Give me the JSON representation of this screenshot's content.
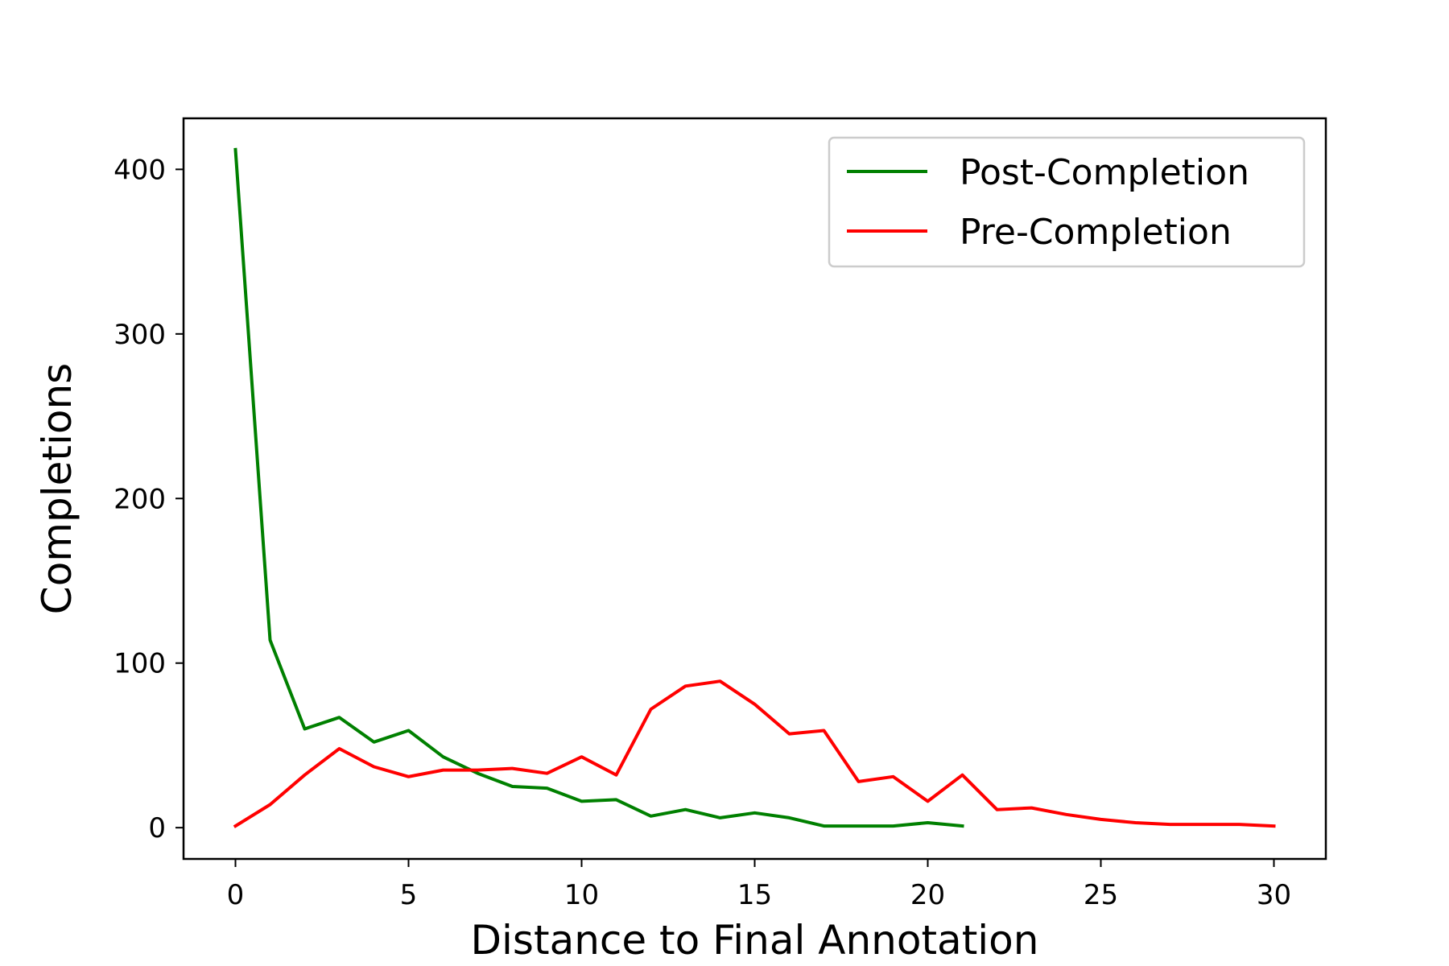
{
  "chart_data": {
    "type": "line",
    "title": "",
    "xlabel": "Distance to Final Annotation",
    "ylabel": "Completions",
    "xlim": [
      -1.5,
      31.5
    ],
    "ylim": [
      -19,
      431
    ],
    "xticks": [
      0,
      5,
      10,
      15,
      20,
      25,
      30
    ],
    "yticks": [
      0,
      100,
      200,
      300,
      400
    ],
    "grid": false,
    "legend_position": "top-right",
    "series": [
      {
        "name": "Post-Completion",
        "color": "#008000",
        "x": [
          0,
          1,
          2,
          3,
          4,
          5,
          6,
          7,
          8,
          9,
          10,
          11,
          12,
          13,
          14,
          15,
          16,
          17,
          18,
          19,
          20,
          21
        ],
        "values": [
          412,
          114,
          60,
          67,
          52,
          59,
          43,
          33,
          25,
          24,
          16,
          17,
          7,
          11,
          6,
          9,
          6,
          1,
          1,
          1,
          3,
          1
        ]
      },
      {
        "name": "Pre-Completion",
        "color": "#ff0000",
        "x": [
          0,
          1,
          2,
          3,
          4,
          5,
          6,
          7,
          8,
          9,
          10,
          11,
          12,
          13,
          14,
          15,
          16,
          17,
          18,
          19,
          20,
          21,
          22,
          23,
          24,
          25,
          26,
          27,
          28,
          29,
          30
        ],
        "values": [
          1,
          14,
          32,
          48,
          37,
          31,
          35,
          35,
          36,
          33,
          43,
          32,
          72,
          86,
          89,
          75,
          57,
          59,
          28,
          31,
          16,
          32,
          11,
          12,
          8,
          5,
          3,
          2,
          2,
          2,
          1
        ]
      }
    ]
  }
}
